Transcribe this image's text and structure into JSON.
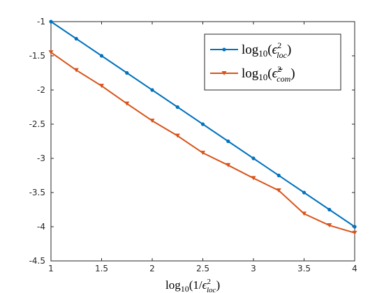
{
  "chart_data": {
    "type": "line",
    "title": "",
    "xlabel": "log10(1/εloc²)",
    "ylabel": "",
    "xlim": [
      1,
      4
    ],
    "ylim": [
      -4.5,
      -1
    ],
    "x_ticks": [
      "1",
      "1.5",
      "2",
      "2.5",
      "3",
      "3.5",
      "4"
    ],
    "y_ticks": [
      "-1",
      "-1.5",
      "-2",
      "-2.5",
      "-3",
      "-3.5",
      "-4",
      "-4.5"
    ],
    "x": [
      1,
      1.25,
      1.5,
      1.75,
      2,
      2.25,
      2.5,
      2.75,
      3,
      3.25,
      3.5,
      3.75,
      4
    ],
    "series": [
      {
        "name": "log10(εloc²)",
        "color": "#0072BD",
        "marker": "circle",
        "values": [
          -1,
          -1.25,
          -1.5,
          -1.75,
          -2,
          -2.25,
          -2.5,
          -2.75,
          -3,
          -3.25,
          -3.5,
          -3.75,
          -4
        ]
      },
      {
        "name": "log10(ε̃com²)",
        "color": "#D95319",
        "marker": "triangle-down",
        "values": [
          -1.45,
          -1.71,
          -1.94,
          -2.2,
          -2.45,
          -2.67,
          -2.92,
          -3.1,
          -3.29,
          -3.47,
          -3.81,
          -3.98,
          -4.09
        ]
      }
    ],
    "grid": false,
    "legend_position": "top-right"
  }
}
